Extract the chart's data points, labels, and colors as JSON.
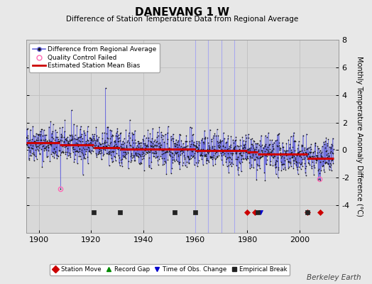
{
  "title": "DANEVANG 1 W",
  "subtitle": "Difference of Station Temperature Data from Regional Average",
  "ylabel": "Monthly Temperature Anomaly Difference (°C)",
  "xlim": [
    1895,
    2015
  ],
  "ylim": [
    -6,
    8
  ],
  "yticks": [
    -4,
    -2,
    0,
    2,
    4,
    6,
    8
  ],
  "xticks": [
    1900,
    1920,
    1940,
    1960,
    1980,
    2000
  ],
  "background_color": "#e8e8e8",
  "plot_bg_color": "#d8d8d8",
  "seed": 42,
  "start_year": 1895,
  "end_year": 2013,
  "bias_segments": [
    {
      "x_start": 1895,
      "x_end": 1908,
      "bias": 0.55
    },
    {
      "x_start": 1908,
      "x_end": 1921,
      "bias": 0.38
    },
    {
      "x_start": 1921,
      "x_end": 1931,
      "bias": 0.2
    },
    {
      "x_start": 1931,
      "x_end": 1952,
      "bias": 0.08
    },
    {
      "x_start": 1952,
      "x_end": 1960,
      "bias": 0.05
    },
    {
      "x_start": 1960,
      "x_end": 1980,
      "bias": -0.05
    },
    {
      "x_start": 1980,
      "x_end": 1984,
      "bias": -0.15
    },
    {
      "x_start": 1984,
      "x_end": 2003,
      "bias": -0.3
    },
    {
      "x_start": 2003,
      "x_end": 2013,
      "bias": -0.6
    }
  ],
  "vertical_lines": [
    1960,
    1965,
    1970,
    1975
  ],
  "station_moves": [
    1980,
    1983,
    2003,
    2008
  ],
  "time_of_obs_changes": [
    1985
  ],
  "empirical_breaks": [
    1921,
    1931,
    1952,
    1960,
    1984,
    2003
  ],
  "qc_failed_points": [
    {
      "year": 1908.3,
      "value": -2.8
    },
    {
      "year": 2007.5,
      "value": -2.1
    }
  ],
  "outlier_point": {
    "year": 1925.5,
    "value": 4.5
  },
  "data_line_color": "#6666dd",
  "data_marker_color": "#111111",
  "bias_line_color": "#cc0000",
  "qc_color": "#ff69b4",
  "station_move_color": "#cc0000",
  "record_gap_color": "#008800",
  "obs_change_color": "#0000cc",
  "empirical_break_color": "#222222",
  "watermark": "Berkeley Earth",
  "grid_color": "#c0c0c0"
}
